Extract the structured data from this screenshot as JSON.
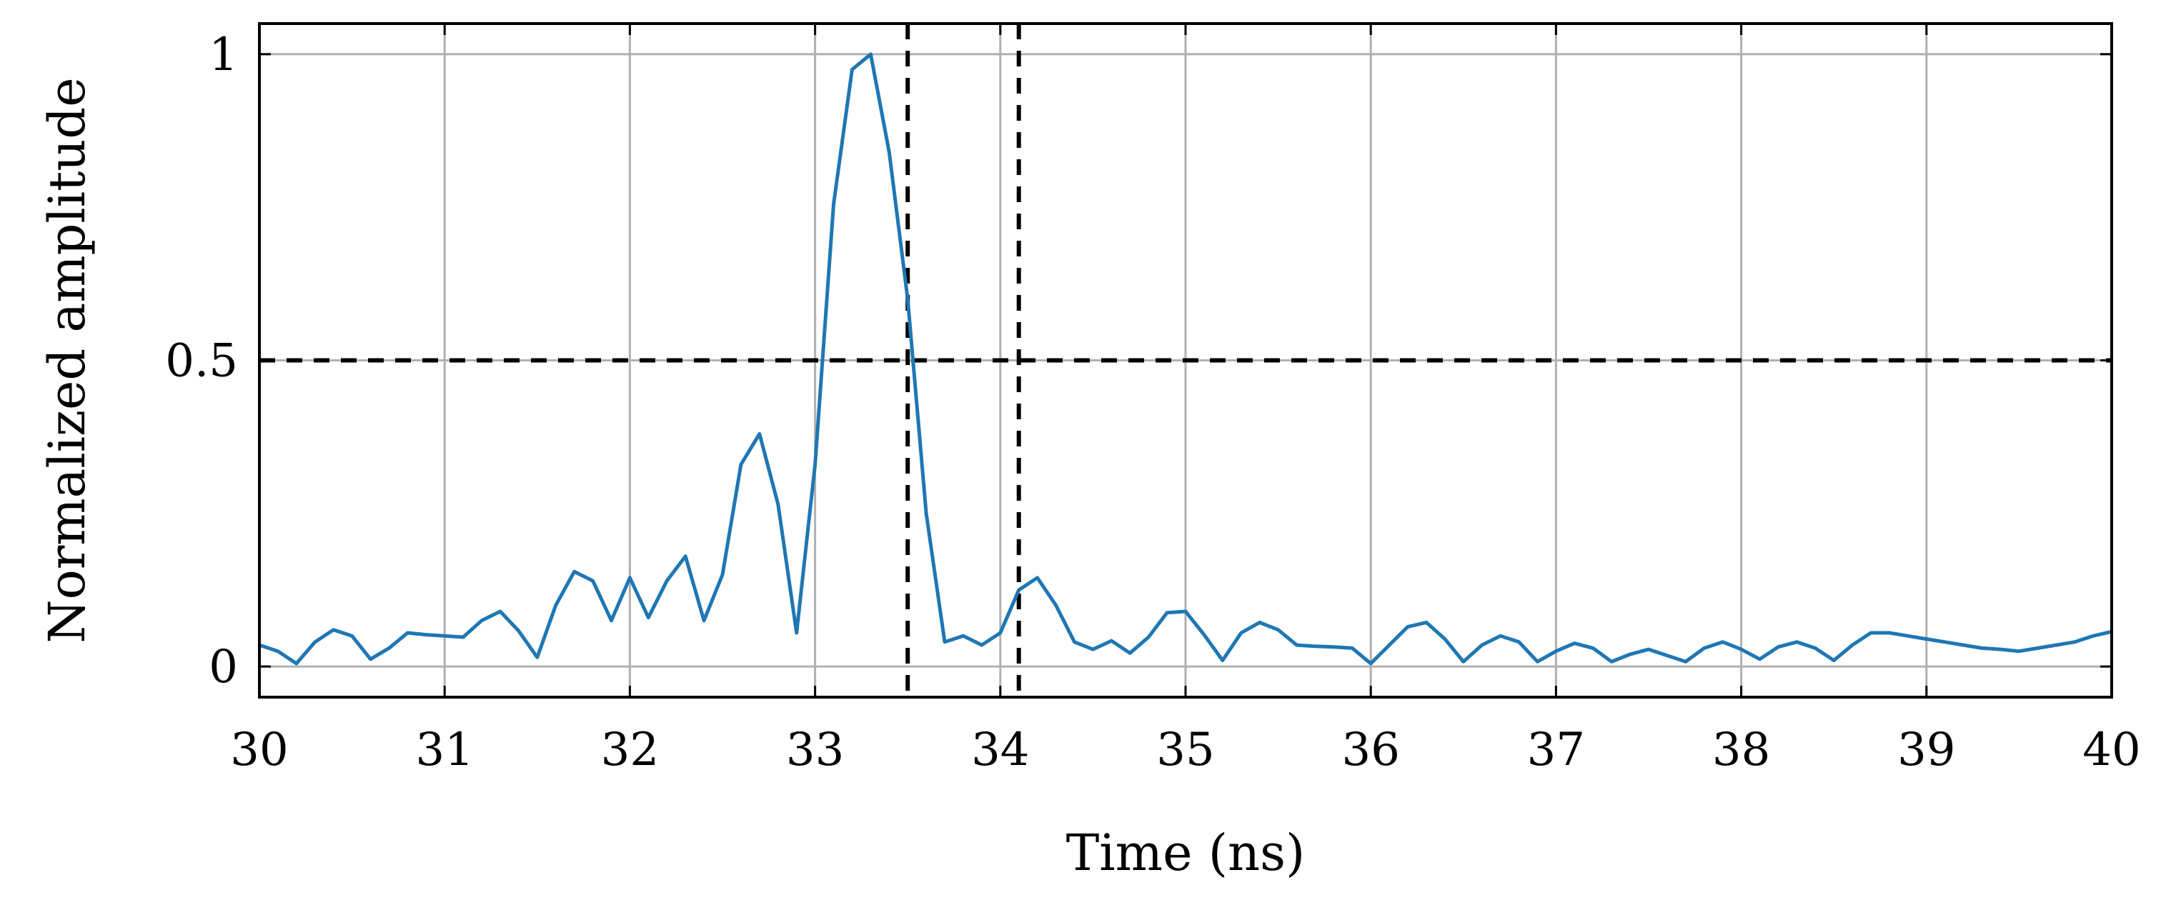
{
  "chart_data": {
    "type": "line",
    "title": "",
    "xlabel": "Time (ns)",
    "ylabel": "Normalized amplitude",
    "xlim": [
      30,
      40
    ],
    "ylim": [
      -0.05,
      1.05
    ],
    "x_ticks": [
      30,
      31,
      32,
      33,
      34,
      35,
      36,
      37,
      38,
      39,
      40
    ],
    "x_tick_labels": [
      "30",
      "31",
      "32",
      "33",
      "34",
      "35",
      "36",
      "37",
      "38",
      "39",
      "40"
    ],
    "y_ticks": [
      0,
      0.5,
      1
    ],
    "y_tick_labels": [
      "0",
      "0.5",
      "1"
    ],
    "grid": true,
    "legend": "none",
    "series": [
      {
        "color": "#1f77b4",
        "x": [
          30.0,
          30.1,
          30.2,
          30.3,
          30.4,
          30.5,
          30.6,
          30.7,
          30.8,
          30.9,
          31.0,
          31.1,
          31.2,
          31.3,
          31.4,
          31.5,
          31.6,
          31.7,
          31.8,
          31.9,
          32.0,
          32.1,
          32.2,
          32.3,
          32.4,
          32.5,
          32.6,
          32.7,
          32.8,
          32.9,
          33.0,
          33.1,
          33.2,
          33.3,
          33.4,
          33.5,
          33.6,
          33.7,
          33.8,
          33.9,
          34.0,
          34.1,
          34.2,
          34.3,
          34.4,
          34.5,
          34.6,
          34.7,
          34.8,
          34.9,
          35.0,
          35.1,
          35.2,
          35.3,
          35.4,
          35.5,
          35.6,
          35.7,
          35.8,
          35.9,
          36.0,
          36.1,
          36.2,
          36.3,
          36.4,
          36.5,
          36.6,
          36.7,
          36.8,
          36.9,
          37.0,
          37.1,
          37.2,
          37.3,
          37.4,
          37.5,
          37.6,
          37.7,
          37.8,
          37.9,
          38.0,
          38.1,
          38.2,
          38.3,
          38.4,
          38.5,
          38.6,
          38.7,
          38.8,
          38.9,
          39.0,
          39.1,
          39.2,
          39.3,
          39.4,
          39.5,
          39.6,
          39.7,
          39.8,
          39.9,
          40.0
        ],
        "y": [
          0.035,
          0.025,
          0.005,
          0.04,
          0.06,
          0.05,
          0.012,
          0.03,
          0.055,
          0.052,
          0.05,
          0.048,
          0.075,
          0.09,
          0.058,
          0.015,
          0.1,
          0.155,
          0.14,
          0.075,
          0.145,
          0.08,
          0.14,
          0.18,
          0.075,
          0.15,
          0.33,
          0.38,
          0.265,
          0.055,
          0.33,
          0.755,
          0.975,
          1.0,
          0.84,
          0.6,
          0.25,
          0.04,
          0.05,
          0.035,
          0.055,
          0.125,
          0.145,
          0.1,
          0.04,
          0.028,
          0.042,
          0.022,
          0.048,
          0.088,
          0.09,
          0.052,
          0.01,
          0.055,
          0.072,
          0.06,
          0.035,
          0.033,
          0.032,
          0.03,
          0.005,
          0.035,
          0.065,
          0.072,
          0.045,
          0.008,
          0.035,
          0.05,
          0.04,
          0.008,
          0.025,
          0.038,
          0.03,
          0.008,
          0.02,
          0.028,
          0.018,
          0.008,
          0.03,
          0.04,
          0.028,
          0.012,
          0.032,
          0.04,
          0.03,
          0.01,
          0.035,
          0.055,
          0.055,
          0.05,
          0.045,
          0.04,
          0.035,
          0.03,
          0.028,
          0.025,
          0.03,
          0.035,
          0.04,
          0.05,
          0.057
        ]
      }
    ],
    "reference_lines": [
      {
        "orientation": "horizontal",
        "value": 0.5,
        "style": "dashed",
        "color": "#000000"
      },
      {
        "orientation": "vertical",
        "value": 33.5,
        "style": "dashed",
        "color": "#000000"
      },
      {
        "orientation": "vertical",
        "value": 34.1,
        "style": "dashed",
        "color": "#000000"
      }
    ],
    "colors": {
      "grid": "#b0b0b0",
      "axes": "#000000",
      "line": "#1f77b4"
    }
  }
}
